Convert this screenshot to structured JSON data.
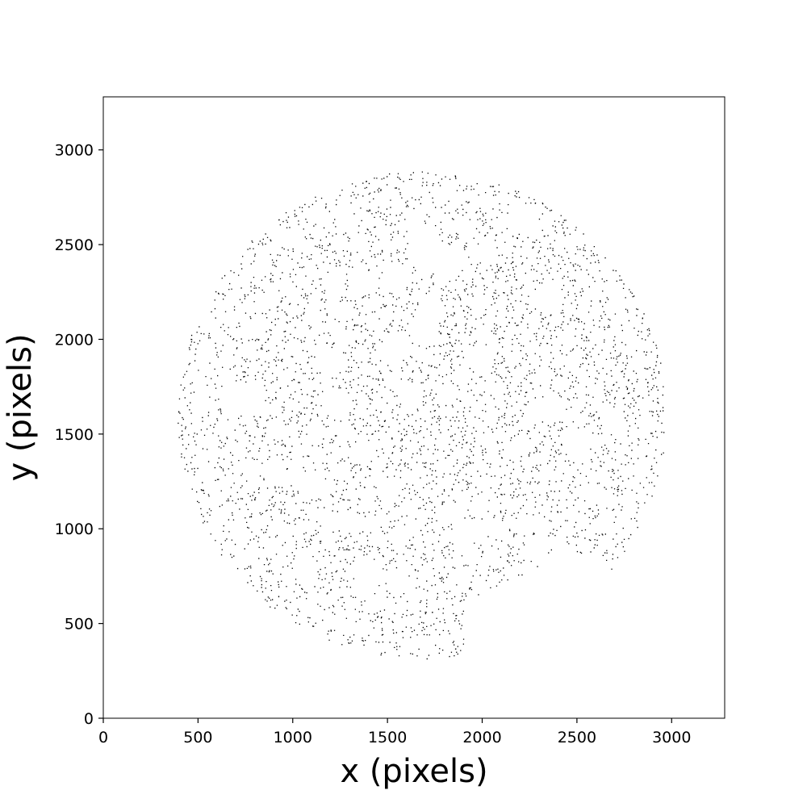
{
  "chart_data": {
    "type": "scatter",
    "title": "",
    "xlabel": "x (pixels)",
    "ylabel": "y (pixels)",
    "xlim": [
      0,
      3280
    ],
    "ylim": [
      0,
      3280
    ],
    "xticks": [
      0,
      500,
      1000,
      1500,
      2000,
      2500,
      3000
    ],
    "yticks": [
      0,
      500,
      1000,
      1500,
      2000,
      2500,
      3000
    ],
    "xtick_labels": [
      "0",
      "500",
      "1000",
      "1500",
      "2000",
      "2500",
      "3000"
    ],
    "ytick_labels": [
      "0",
      "500",
      "1000",
      "1500",
      "2000",
      "2500",
      "3000"
    ],
    "grid": false,
    "marker_color": "#000000",
    "region": {
      "shape": "disk",
      "center": [
        1680,
        1600
      ],
      "radius": 1290,
      "clip_x": [
        390,
        2960
      ],
      "clip_y": [
        300,
        2890
      ],
      "notch_center": [
        2330,
        480
      ],
      "notch_radius": 430
    },
    "series": [
      {
        "values": []
      }
    ]
  }
}
